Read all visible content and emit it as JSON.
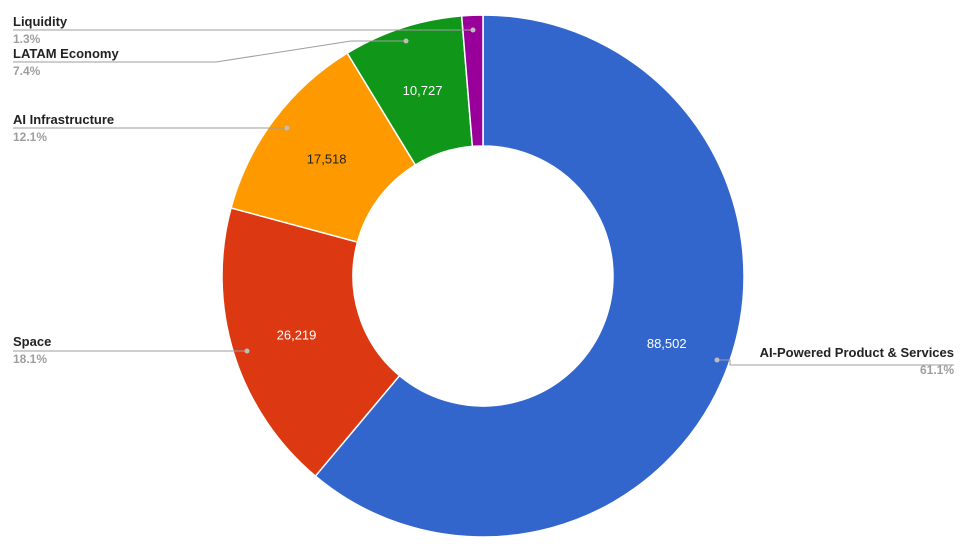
{
  "chart_data": {
    "type": "pie",
    "donut": true,
    "slices": [
      {
        "label": "AI-Powered Product & Services",
        "value": 88502,
        "value_label": "88,502",
        "percent_label": "61.1%",
        "color": "#3366cc",
        "value_color": "#ffffff"
      },
      {
        "label": "Space",
        "value": 26219,
        "value_label": "26,219",
        "percent_label": "18.1%",
        "color": "#dc3912",
        "value_color": "#ffffff"
      },
      {
        "label": "AI Infrastructure",
        "value": 17518,
        "value_label": "17,518",
        "percent_label": "12.1%",
        "color": "#ff9900",
        "value_color": "#222222"
      },
      {
        "label": "LATAM Economy",
        "value": 10727,
        "value_label": "10,727",
        "percent_label": "7.4%",
        "color": "#109618",
        "value_color": "#ffffff"
      },
      {
        "label": "Liquidity",
        "value": 1885,
        "value_label": "",
        "percent_label": "1.3%",
        "color": "#990099",
        "value_color": "#ffffff"
      }
    ],
    "start_angle_deg": 0,
    "direction": "clockwise",
    "legend": "labeled"
  }
}
